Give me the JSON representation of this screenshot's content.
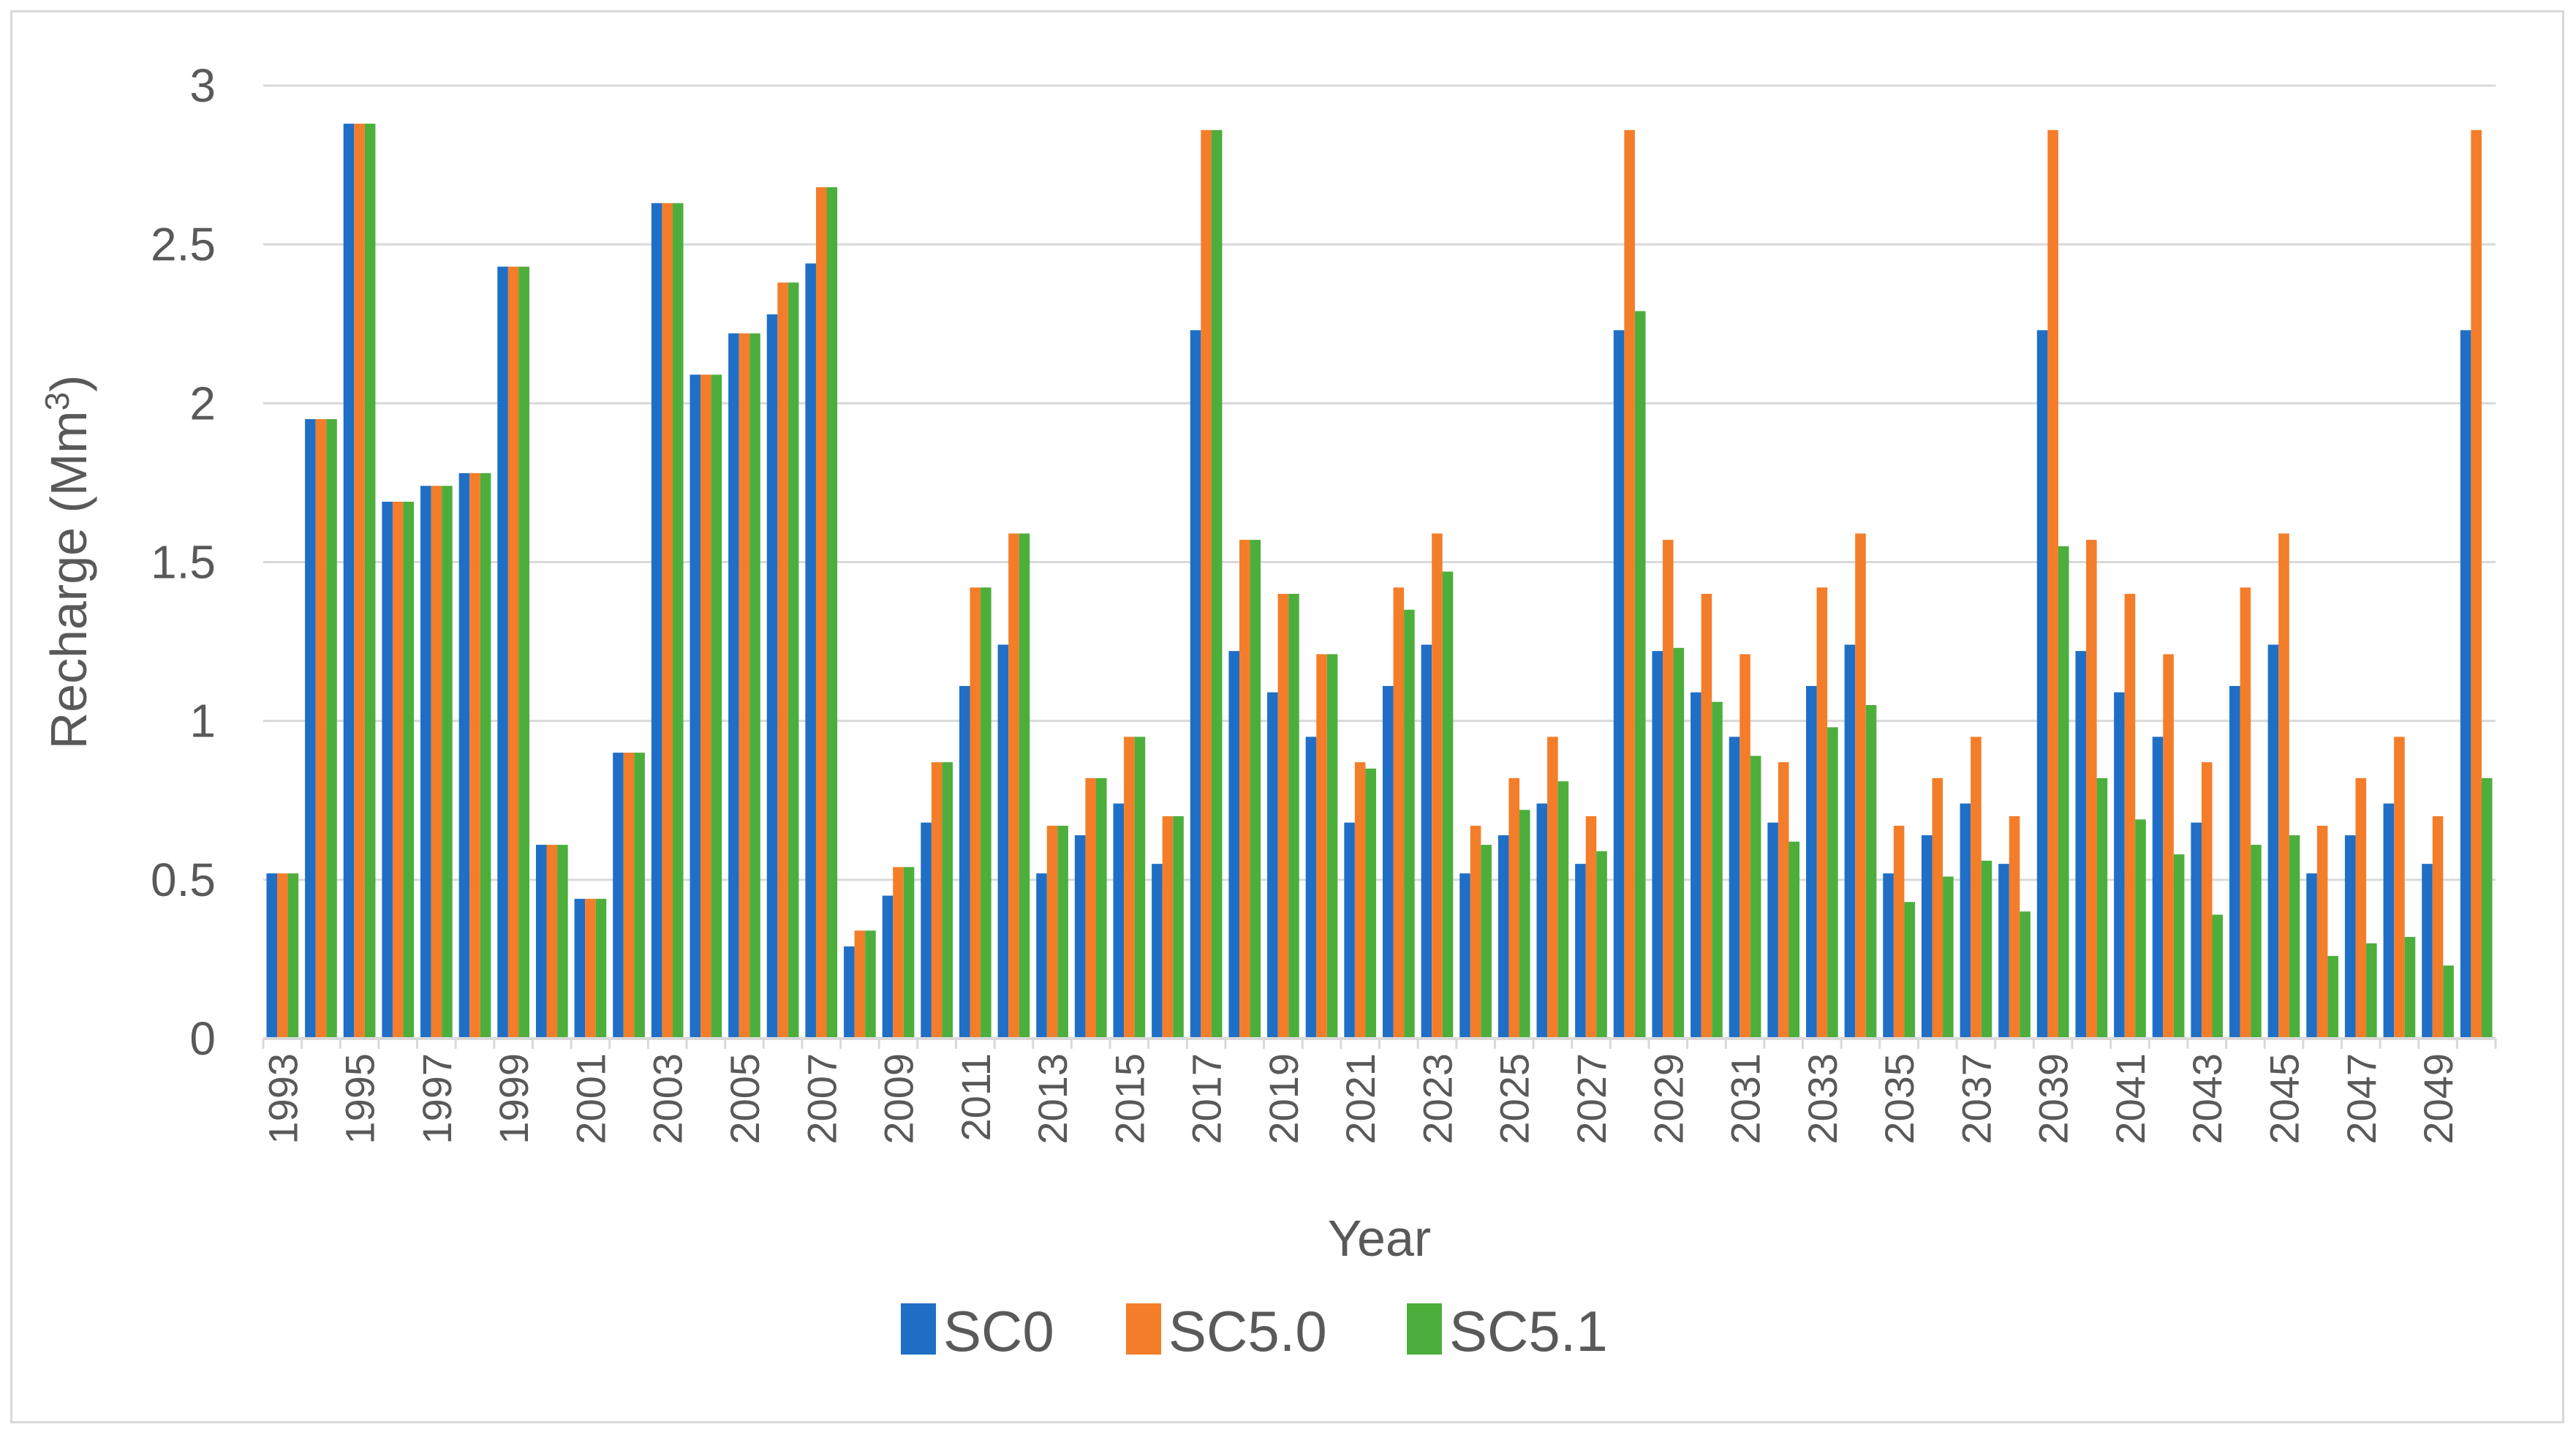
{
  "chart_data": {
    "type": "bar",
    "title": "",
    "xlabel": "Year",
    "ylabel": "Recharge (Mm",
    "ylabel_sup": "3",
    "ylabel_close": ")",
    "ylim": [
      0,
      3
    ],
    "yticks": [
      0,
      0.5,
      1,
      1.5,
      2,
      2.5,
      3
    ],
    "ytick_labels": [
      "0",
      "0.5",
      "1",
      "1.5",
      "2",
      "2.5",
      "3"
    ],
    "grid": true,
    "legend_position": "bottom",
    "categories": [
      1993,
      1994,
      1995,
      1996,
      1997,
      1998,
      1999,
      2000,
      2001,
      2002,
      2003,
      2004,
      2005,
      2006,
      2007,
      2008,
      2009,
      2010,
      2011,
      2012,
      2013,
      2014,
      2015,
      2016,
      2017,
      2018,
      2019,
      2020,
      2021,
      2022,
      2023,
      2024,
      2025,
      2026,
      2027,
      2028,
      2029,
      2030,
      2031,
      2032,
      2033,
      2034,
      2035,
      2036,
      2037,
      2038,
      2039,
      2040,
      2041,
      2042,
      2043,
      2044,
      2045,
      2046,
      2047,
      2048,
      2049,
      2050
    ],
    "tick_labels": [
      "1993",
      "1995",
      "1997",
      "1999",
      "2001",
      "2003",
      "2005",
      "2007",
      "2009",
      "2011",
      "2013",
      "2015",
      "2017",
      "2019",
      "2021",
      "2023",
      "2025",
      "2027",
      "2029",
      "2031",
      "2033",
      "2035",
      "2037",
      "2039",
      "2041",
      "2043",
      "2045",
      "2047",
      "2049"
    ],
    "series": [
      {
        "name": "SC0",
        "color": "#1f6fc6",
        "values": [
          0.52,
          1.95,
          2.88,
          1.69,
          1.74,
          1.78,
          2.43,
          0.61,
          0.44,
          0.9,
          2.63,
          2.09,
          2.22,
          2.28,
          2.44,
          0.29,
          0.45,
          0.68,
          1.11,
          1.24,
          0.52,
          0.64,
          0.74,
          0.55,
          2.23,
          1.22,
          1.09,
          0.95,
          0.68,
          1.11,
          1.24,
          0.52,
          0.64,
          0.74,
          0.55,
          2.23,
          1.22,
          1.09,
          0.95,
          0.68,
          1.11,
          1.24,
          0.52,
          0.64,
          0.74,
          0.55,
          2.23,
          1.22,
          1.09,
          0.95,
          0.68,
          1.11,
          1.24,
          0.52,
          0.64,
          0.74,
          0.55,
          2.23
        ]
      },
      {
        "name": "SC5.0",
        "color": "#f47d2a",
        "values": [
          0.52,
          1.95,
          2.88,
          1.69,
          1.74,
          1.78,
          2.43,
          0.61,
          0.44,
          0.9,
          2.63,
          2.09,
          2.22,
          2.38,
          2.68,
          0.34,
          0.54,
          0.87,
          1.42,
          1.59,
          0.67,
          0.82,
          0.95,
          0.7,
          2.86,
          1.57,
          1.4,
          1.21,
          0.87,
          1.42,
          1.59,
          0.67,
          0.82,
          0.95,
          0.7,
          2.86,
          1.57,
          1.4,
          1.21,
          0.87,
          1.42,
          1.59,
          0.67,
          0.82,
          0.95,
          0.7,
          2.86,
          1.57,
          1.4,
          1.21,
          0.87,
          1.42,
          1.59,
          0.67,
          0.82,
          0.95,
          0.7,
          2.86
        ]
      },
      {
        "name": "SC5.1",
        "color": "#4caf3c",
        "values": [
          0.52,
          1.95,
          2.88,
          1.69,
          1.74,
          1.78,
          2.43,
          0.61,
          0.44,
          0.9,
          2.63,
          2.09,
          2.22,
          2.38,
          2.68,
          0.34,
          0.54,
          0.87,
          1.42,
          1.59,
          0.67,
          0.82,
          0.95,
          0.7,
          2.86,
          1.57,
          1.4,
          1.21,
          0.85,
          1.35,
          1.47,
          0.61,
          0.72,
          0.81,
          0.59,
          2.29,
          1.23,
          1.06,
          0.89,
          0.62,
          0.98,
          1.05,
          0.43,
          0.51,
          0.56,
          0.4,
          1.55,
          0.82,
          0.69,
          0.58,
          0.39,
          0.61,
          0.64,
          0.26,
          0.3,
          0.32,
          0.23,
          0.82
        ]
      }
    ]
  }
}
